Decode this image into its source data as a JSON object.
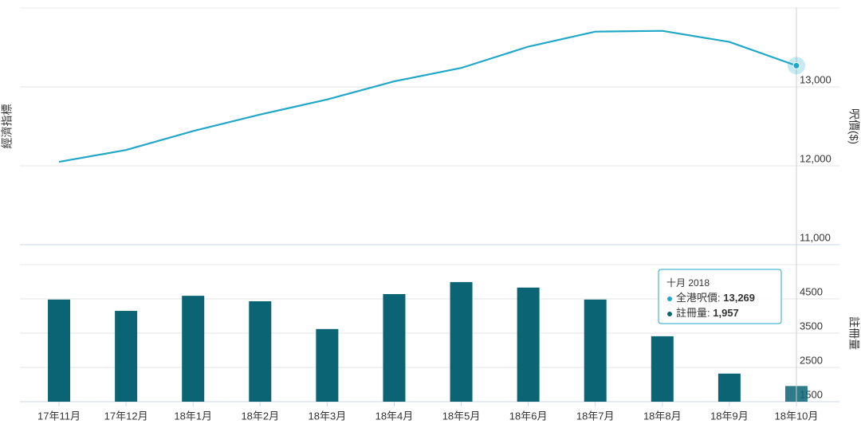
{
  "chart_data": [
    {
      "type": "line",
      "y_label_left": "經濟指標",
      "y_label": "呎價($)",
      "categories": [
        "17年11月",
        "17年12月",
        "18年1月",
        "18年2月",
        "18年3月",
        "18年4月",
        "18年5月",
        "18年6月",
        "18年7月",
        "18年8月",
        "18年9月",
        "18年10月"
      ],
      "series": [
        {
          "name": "全港呎價",
          "color": "#21a7c7",
          "values": [
            12050,
            12200,
            12440,
            12650,
            12840,
            13070,
            13240,
            13510,
            13700,
            13710,
            13570,
            13269
          ]
        }
      ],
      "ylim": [
        11000,
        14000
      ],
      "yticks": [
        {
          "value": 11000,
          "label": "11,000"
        },
        {
          "value": 12000,
          "label": "12,000"
        },
        {
          "value": 13000,
          "label": "13,000"
        }
      ],
      "grid": true
    },
    {
      "type": "bar",
      "y_label": "註冊量",
      "categories": [
        "17年11月",
        "17年12月",
        "18年1月",
        "18年2月",
        "18年3月",
        "18年4月",
        "18年5月",
        "18年6月",
        "18年7月",
        "18年8月",
        "18年9月",
        "18年10月"
      ],
      "series": [
        {
          "name": "註冊量",
          "color": "#0a6474",
          "values": [
            4480,
            4150,
            4590,
            4430,
            3620,
            4640,
            4990,
            4830,
            4480,
            3410,
            2320,
            1957
          ]
        }
      ],
      "ylim": [
        1500,
        5500
      ],
      "yticks": [
        1500,
        2500,
        3500,
        4500
      ],
      "grid": true
    }
  ],
  "tooltip": {
    "title": "十月 2018",
    "separator": ": ",
    "labels": [
      "13,269",
      "1,957"
    ]
  }
}
